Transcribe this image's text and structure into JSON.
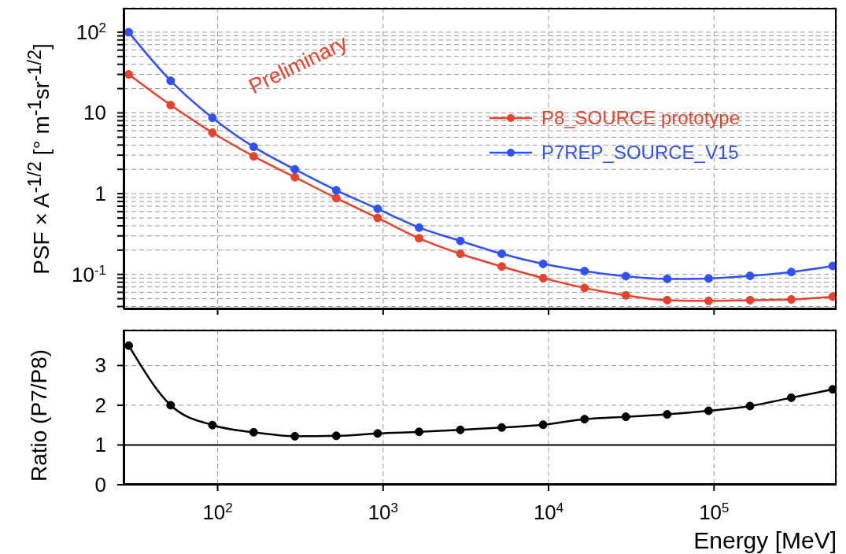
{
  "chart_data": [
    {
      "type": "line",
      "ylabel": "PSF × A$^{-1/2}$ [° m$^{-1}$sr$^{-1/2}$]",
      "annotations": [
        "Preliminary"
      ],
      "x": [
        29,
        52,
        93,
        165,
        293,
        521,
        927,
        1650,
        2930,
        5210,
        9270,
        16500,
        29300,
        52100,
        92700,
        165000,
        293000,
        521000
      ],
      "xlim": [
        27,
        550000
      ],
      "xticks": [
        {
          "value": 100,
          "label": null
        },
        {
          "value": 1000,
          "label": null
        },
        {
          "value": 10000,
          "label": null
        },
        {
          "value": 100000,
          "label": null
        }
      ],
      "ylim": [
        0.037,
        200
      ],
      "yticks": [
        {
          "value": 0.04,
          "label": null
        },
        {
          "value": 0.05,
          "label": null
        },
        {
          "value": 0.06,
          "label": null
        },
        {
          "value": 0.07,
          "label": null
        },
        {
          "value": 0.08,
          "label": null
        },
        {
          "value": 0.09,
          "label": null
        },
        {
          "value": 0.1,
          "label": "10$^{-1}$"
        },
        {
          "value": 0.2,
          "label": null
        },
        {
          "value": 0.3,
          "label": null
        },
        {
          "value": 0.4,
          "label": null
        },
        {
          "value": 0.5,
          "label": null
        },
        {
          "value": 0.6,
          "label": null
        },
        {
          "value": 0.7,
          "label": null
        },
        {
          "value": 0.8,
          "label": null
        },
        {
          "value": 0.9,
          "label": null
        },
        1,
        {
          "value": 2,
          "label": null
        },
        {
          "value": 3,
          "label": null
        },
        {
          "value": 4,
          "label": null
        },
        {
          "value": 5,
          "label": null
        },
        {
          "value": 6,
          "label": null
        },
        {
          "value": 7,
          "label": null
        },
        {
          "value": 8,
          "label": null
        },
        {
          "value": 9,
          "label": null
        },
        10,
        {
          "value": 20,
          "label": null
        },
        {
          "value": 30,
          "label": null
        },
        {
          "value": 40,
          "label": null
        },
        {
          "value": 50,
          "label": null
        },
        {
          "value": 60,
          "label": null
        },
        {
          "value": 70,
          "label": null
        },
        {
          "value": 80,
          "label": null
        },
        {
          "value": 90,
          "label": null
        },
        {
          "value": 100,
          "label": "10$^{2}$"
        }
      ],
      "log": "xy",
      "grid": true,
      "legend": "top right",
      "marker": "circle",
      "tick_labels": "y",
      "series": [
        {
          "name": "P8_SOURCE prototype",
          "color": "#e8412c",
          "values": [
            30,
            12.5,
            5.7,
            2.9,
            1.6,
            0.88,
            0.5,
            0.28,
            0.18,
            0.125,
            0.09,
            0.068,
            0.055,
            0.048,
            0.047,
            0.048,
            0.049,
            0.053
          ]
        },
        {
          "name": "P7REP_SOURCE_V15",
          "color": "#3050f8",
          "values": [
            100,
            25,
            8.7,
            3.8,
            2,
            1.1,
            0.65,
            0.38,
            0.26,
            0.18,
            0.135,
            0.11,
            0.095,
            0.088,
            0.089,
            0.096,
            0.107,
            0.127
          ]
        }
      ]
    },
    {
      "type": "line",
      "ylabel": "Ratio (P7/P8)",
      "xlabel": "Energy [MeV]",
      "x": [
        29,
        52,
        93,
        165,
        293,
        521,
        927,
        1650,
        2930,
        5210,
        9270,
        16500,
        29300,
        52100,
        92700,
        165000,
        293000,
        521000
      ],
      "xlim": [
        27,
        550000
      ],
      "xticks": [
        {
          "value": 100,
          "label": "10$^{2}$"
        },
        {
          "value": 1000,
          "label": "10$^{3}$"
        },
        {
          "value": 10000,
          "label": "10$^{4}$"
        },
        {
          "value": 100000,
          "label": "10$^{5}$"
        }
      ],
      "ylim": [
        0,
        3.9
      ],
      "yticks": [
        0,
        1,
        2,
        3
      ],
      "log": "x",
      "grid": true,
      "marker": "circle",
      "ref_lines": [
        {
          "axis": "y",
          "value": 1,
          "color": "#000000"
        }
      ],
      "series": [
        {
          "color": "#000000",
          "values": [
            3.5,
            2.0,
            1.5,
            1.32,
            1.22,
            1.23,
            1.29,
            1.33,
            1.38,
            1.44,
            1.51,
            1.65,
            1.71,
            1.77,
            1.86,
            1.98,
            2.19,
            2.4
          ]
        }
      ]
    }
  ]
}
